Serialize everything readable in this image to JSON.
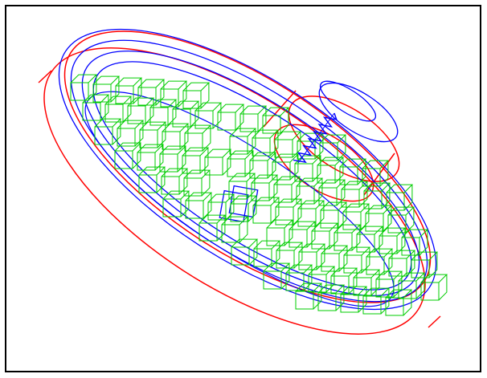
{
  "colors": {
    "background": "#ffffff",
    "border": "#000000",
    "housing_red": "#ff0000",
    "track_blue": "#0000ff",
    "cells_green": "#00cc00"
  }
}
